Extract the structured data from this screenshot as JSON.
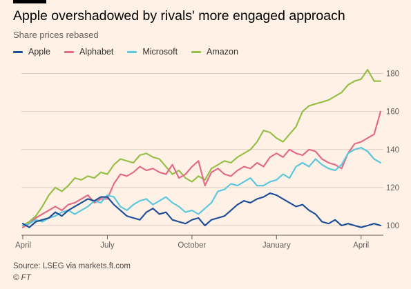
{
  "header": {
    "title": "Apple overshadowed by rivals' more engaged approach",
    "subtitle": "Share prices rebased"
  },
  "footer": {
    "source": "Source: LSEG via markets.ft.com",
    "credit": "© FT"
  },
  "colors": {
    "background": "#fff1e5",
    "grid": "#d9cfc6",
    "axis_text": "#66605c"
  },
  "chart_data": {
    "type": "line",
    "title": "Apple overshadowed by rivals' more engaged approach",
    "subtitle": "Share prices rebased",
    "xlabel": "",
    "ylabel": "",
    "x_ticks": [
      "April",
      "July",
      "October",
      "January",
      "April"
    ],
    "x_tick_positions": [
      0,
      13,
      26,
      39,
      52
    ],
    "x_range": [
      0,
      55
    ],
    "y_ticks": [
      100,
      120,
      140,
      160,
      180
    ],
    "ylim": [
      96,
      186
    ],
    "y_axis_side": "right",
    "grid": "horizontal",
    "legend_position": "top-left",
    "x": [
      0,
      1,
      2,
      3,
      4,
      5,
      6,
      7,
      8,
      9,
      10,
      11,
      12,
      13,
      14,
      15,
      16,
      17,
      18,
      19,
      20,
      21,
      22,
      23,
      24,
      25,
      26,
      27,
      28,
      29,
      30,
      31,
      32,
      33,
      34,
      35,
      36,
      37,
      38,
      39,
      40,
      41,
      42,
      43,
      44,
      45,
      46,
      47,
      48,
      49,
      50,
      51,
      52,
      53,
      54,
      55
    ],
    "series": [
      {
        "name": "Apple",
        "color": "#1f4e99",
        "values": [
          101,
          99,
          102,
          103,
          104,
          107,
          105,
          108,
          110,
          112,
          114,
          113,
          115,
          115,
          111,
          108,
          105,
          104,
          103,
          107,
          109,
          106,
          107,
          103,
          102,
          101,
          103,
          104,
          100,
          103,
          104,
          105,
          108,
          111,
          113,
          112,
          114,
          115,
          117,
          116,
          114,
          112,
          110,
          111,
          108,
          106,
          102,
          101,
          103,
          100,
          101,
          100,
          99,
          100,
          101,
          100
        ]
      },
      {
        "name": "Alphabet",
        "color": "#e26b87",
        "values": [
          99,
          101,
          104,
          106,
          108,
          110,
          108,
          111,
          112,
          114,
          116,
          112,
          114,
          114,
          122,
          127,
          126,
          128,
          131,
          129,
          130,
          128,
          127,
          132,
          125,
          127,
          131,
          134,
          121,
          128,
          130,
          127,
          126,
          129,
          131,
          130,
          133,
          131,
          136,
          138,
          136,
          140,
          138,
          137,
          140,
          139,
          135,
          133,
          132,
          130,
          138,
          143,
          144,
          146,
          148,
          160
        ]
      },
      {
        "name": "Microsoft",
        "color": "#5cc7dd",
        "values": [
          100,
          101,
          103,
          102,
          104,
          105,
          107,
          108,
          106,
          108,
          110,
          113,
          112,
          116,
          115,
          110,
          108,
          111,
          113,
          114,
          111,
          113,
          115,
          112,
          110,
          107,
          108,
          106,
          109,
          112,
          118,
          119,
          122,
          121,
          123,
          125,
          121,
          121,
          123,
          124,
          127,
          125,
          131,
          133,
          131,
          135,
          132,
          130,
          129,
          132,
          138,
          140,
          141,
          139,
          135,
          133
        ]
      },
      {
        "name": "Amazon",
        "color": "#96bf48",
        "values": [
          100,
          102,
          105,
          110,
          116,
          120,
          118,
          121,
          125,
          124,
          126,
          125,
          128,
          127,
          132,
          135,
          134,
          133,
          137,
          138,
          136,
          135,
          131,
          127,
          129,
          125,
          123,
          126,
          124,
          130,
          132,
          134,
          133,
          136,
          138,
          140,
          144,
          150,
          149,
          146,
          144,
          148,
          152,
          160,
          163,
          164,
          165,
          166,
          168,
          170,
          174,
          176,
          177,
          182,
          176,
          176
        ]
      }
    ]
  }
}
